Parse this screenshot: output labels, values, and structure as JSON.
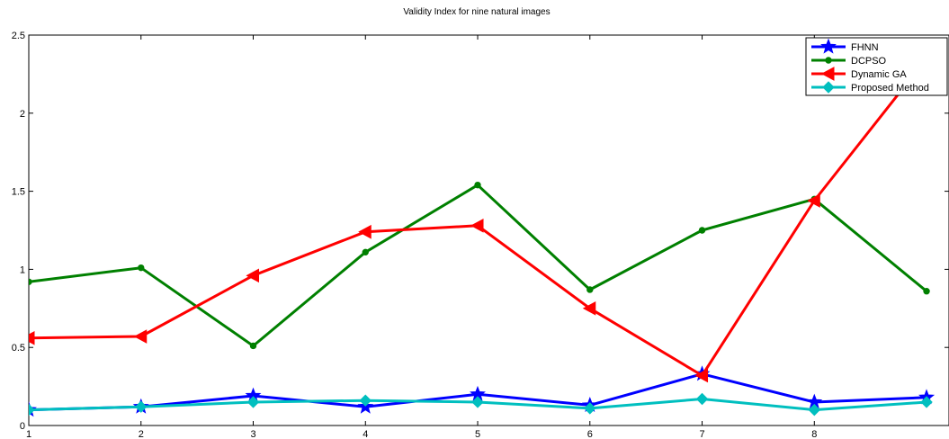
{
  "chart_data": {
    "type": "line",
    "title": "Validity Index  for nine natural images",
    "xlabel": "",
    "ylabel": "",
    "x": [
      1,
      2,
      3,
      4,
      5,
      6,
      7,
      8,
      9
    ],
    "xlim": [
      1,
      9
    ],
    "ylim": [
      0,
      2.5
    ],
    "xticks": [
      "1",
      "2",
      "3",
      "4",
      "5",
      "6",
      "7",
      "8"
    ],
    "yticks": [
      "0",
      "0.5",
      "1",
      "1.5",
      "2",
      "2.5"
    ],
    "grid": false,
    "legend_position": "top-right",
    "series": [
      {
        "name": "FHNN",
        "color": "#0000ff",
        "marker": "star",
        "values": [
          0.1,
          0.12,
          0.19,
          0.12,
          0.2,
          0.13,
          0.33,
          0.15,
          0.18
        ]
      },
      {
        "name": "DCPSO",
        "color": "#008000",
        "marker": "dot",
        "values": [
          0.92,
          1.01,
          0.51,
          1.11,
          1.54,
          0.87,
          1.25,
          1.45,
          0.86
        ]
      },
      {
        "name": "Dynamic GA",
        "color": "#ff0000",
        "marker": "triangle-left",
        "values": [
          0.56,
          0.57,
          0.96,
          1.24,
          1.28,
          0.75,
          0.32,
          1.44,
          2.35
        ]
      },
      {
        "name": "Proposed Method",
        "color": "#00bfbf",
        "marker": "diamond",
        "values": [
          0.1,
          0.12,
          0.15,
          0.16,
          0.15,
          0.11,
          0.17,
          0.1,
          0.15
        ]
      }
    ]
  }
}
